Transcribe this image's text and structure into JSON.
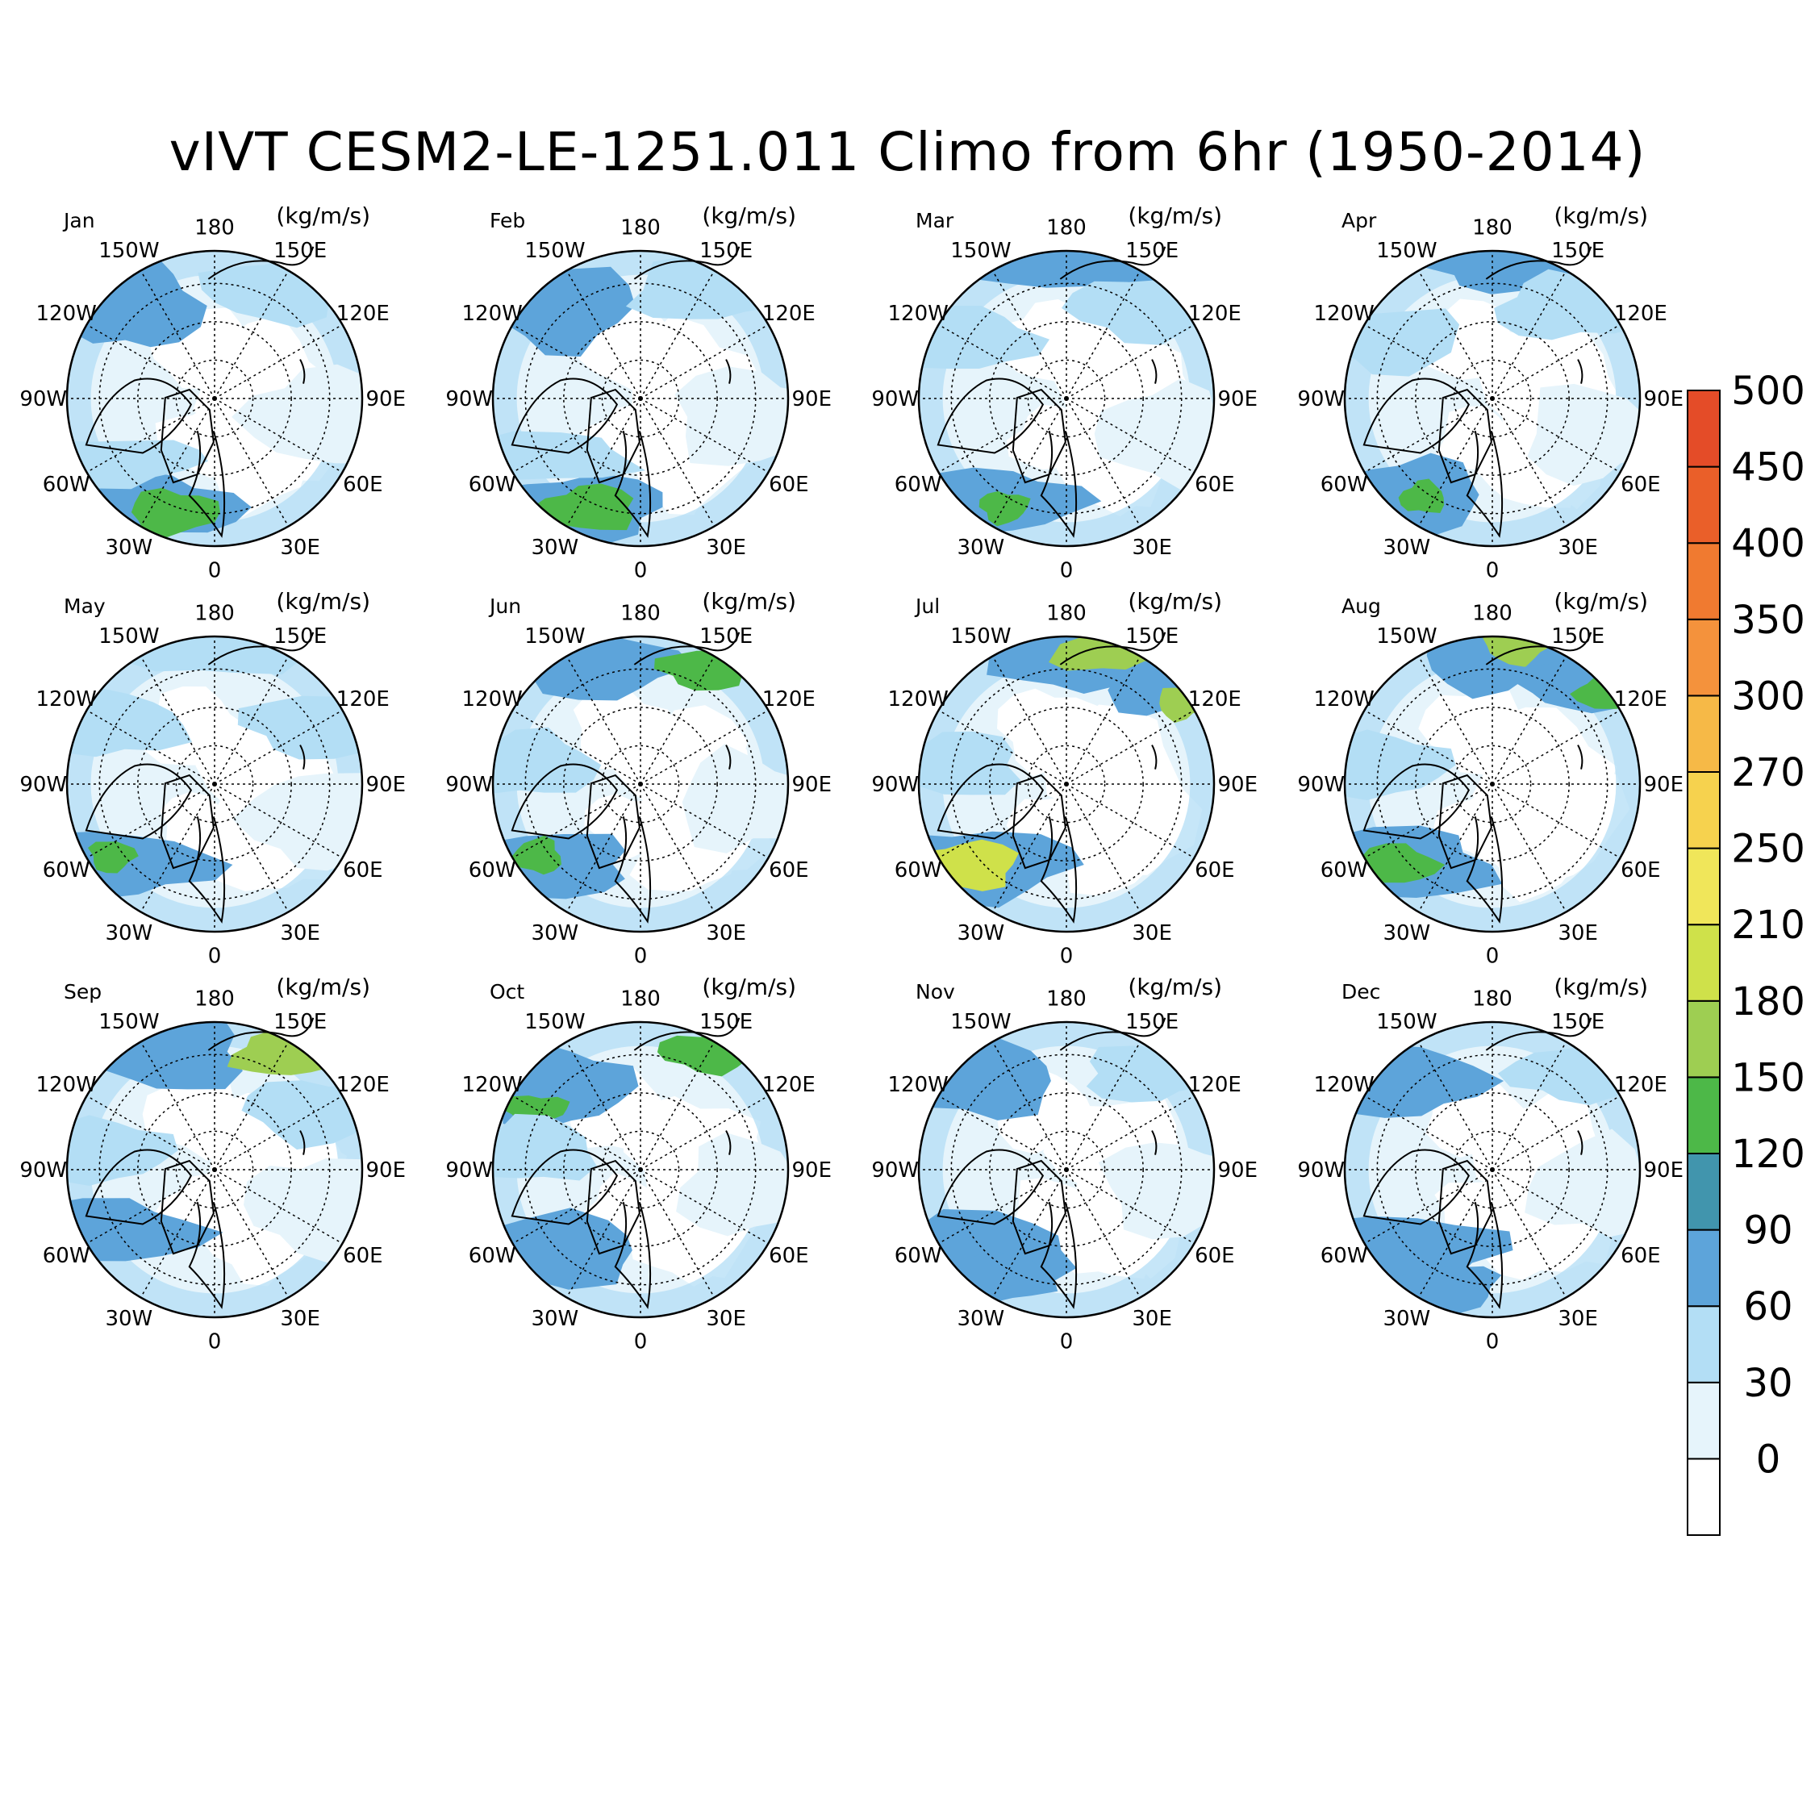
{
  "title": "vIVT CESM2-LE-1251.011 Climo from 6hr (1950-2014)",
  "units": "(kg/m/s)",
  "lon_labels": [
    "180",
    "150E",
    "120E",
    "90E",
    "60E",
    "30E",
    "0",
    "30W",
    "60W",
    "90W",
    "120W",
    "150W"
  ],
  "panels": [
    {
      "month": "Jan"
    },
    {
      "month": "Feb"
    },
    {
      "month": "Mar"
    },
    {
      "month": "Apr"
    },
    {
      "month": "May"
    },
    {
      "month": "Jun"
    },
    {
      "month": "Jul"
    },
    {
      "month": "Aug"
    },
    {
      "month": "Sep"
    },
    {
      "month": "Oct"
    },
    {
      "month": "Nov"
    },
    {
      "month": "Dec"
    }
  ],
  "colorbar": {
    "labels": [
      "0",
      "30",
      "60",
      "90",
      "120",
      "150",
      "180",
      "210",
      "250",
      "270",
      "300",
      "350",
      "400",
      "450",
      "500"
    ],
    "colors": [
      "#ffffff",
      "#e6f4fb",
      "#b3def5",
      "#5da4da",
      "#4195ad",
      "#4db848",
      "#9ece52",
      "#cfe14a",
      "#f0e65a",
      "#f6d24e",
      "#f6b947",
      "#f4923c",
      "#f07a30",
      "#ea5f29",
      "#e44c28"
    ]
  }
}
